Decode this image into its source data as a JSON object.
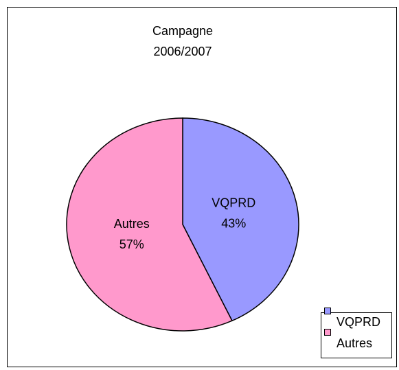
{
  "chart_data": {
    "type": "pie",
    "title": [
      "Campagne",
      "2006/2007"
    ],
    "categories": [
      "VQPRD",
      "Autres"
    ],
    "values": [
      43,
      57
    ],
    "value_labels": [
      "43%",
      "57%"
    ],
    "colors": [
      "#9999ff",
      "#ff99cc"
    ],
    "legend": "bottom-right"
  }
}
